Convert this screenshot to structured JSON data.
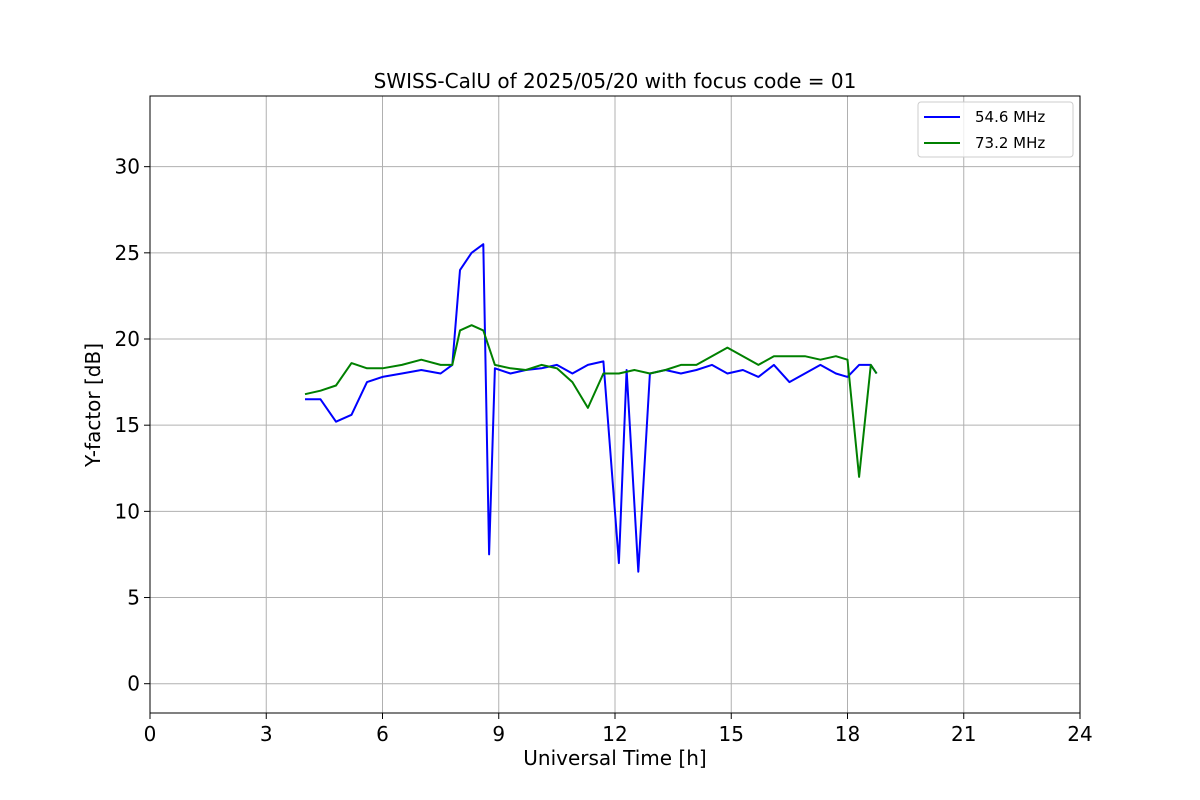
{
  "chart_data": {
    "type": "line",
    "title": "SWISS-CalU of 2025/05/20 with focus code = 01",
    "xlabel": "Universal Time [h]",
    "ylabel": "Y-factor [dB]",
    "xlim": [
      0,
      24
    ],
    "ylim": [
      -1.7,
      34.1
    ],
    "x_ticks": [
      0,
      3,
      6,
      9,
      12,
      15,
      18,
      21,
      24
    ],
    "y_ticks": [
      0,
      5,
      10,
      15,
      20,
      25,
      30
    ],
    "grid": true,
    "legend_position": "top-right",
    "series": [
      {
        "name": "54.6 MHz",
        "color": "#0000ff",
        "x": [
          4.0,
          4.4,
          4.8,
          5.2,
          5.6,
          6.0,
          6.5,
          7.0,
          7.5,
          7.8,
          8.0,
          8.3,
          8.6,
          8.75,
          8.9,
          9.3,
          9.7,
          10.1,
          10.5,
          10.9,
          11.3,
          11.7,
          12.1,
          12.3,
          12.6,
          12.9,
          13.3,
          13.7,
          14.1,
          14.5,
          14.9,
          15.3,
          15.7,
          16.1,
          16.5,
          16.9,
          17.3,
          17.7,
          18.0,
          18.3,
          18.6,
          18.75
        ],
        "values": [
          16.5,
          16.5,
          15.2,
          15.6,
          17.5,
          17.8,
          18.0,
          18.2,
          18.0,
          18.5,
          24.0,
          25.0,
          25.5,
          7.5,
          18.3,
          18.0,
          18.2,
          18.3,
          18.5,
          18.0,
          18.5,
          18.7,
          7.0,
          18.2,
          6.5,
          18.0,
          18.2,
          18.0,
          18.2,
          18.5,
          18.0,
          18.2,
          17.8,
          18.5,
          17.5,
          18.0,
          18.5,
          18.0,
          17.8,
          18.5,
          18.5,
          18.0
        ]
      },
      {
        "name": "73.2 MHz",
        "color": "#008000",
        "x": [
          4.0,
          4.4,
          4.8,
          5.2,
          5.6,
          6.0,
          6.5,
          7.0,
          7.5,
          7.8,
          8.0,
          8.3,
          8.6,
          8.9,
          9.3,
          9.7,
          10.1,
          10.5,
          10.9,
          11.3,
          11.7,
          12.1,
          12.5,
          12.9,
          13.3,
          13.7,
          14.1,
          14.5,
          14.9,
          15.3,
          15.7,
          16.1,
          16.5,
          16.9,
          17.3,
          17.7,
          18.0,
          18.3,
          18.6,
          18.75
        ],
        "values": [
          16.8,
          17.0,
          17.3,
          18.6,
          18.3,
          18.3,
          18.5,
          18.8,
          18.5,
          18.5,
          20.5,
          20.8,
          20.5,
          18.5,
          18.3,
          18.2,
          18.5,
          18.3,
          17.5,
          16.0,
          18.0,
          18.0,
          18.2,
          18.0,
          18.2,
          18.5,
          18.5,
          19.0,
          19.5,
          19.0,
          18.5,
          19.0,
          19.0,
          19.0,
          18.8,
          19.0,
          18.8,
          12.0,
          18.5,
          18.0
        ]
      }
    ]
  }
}
